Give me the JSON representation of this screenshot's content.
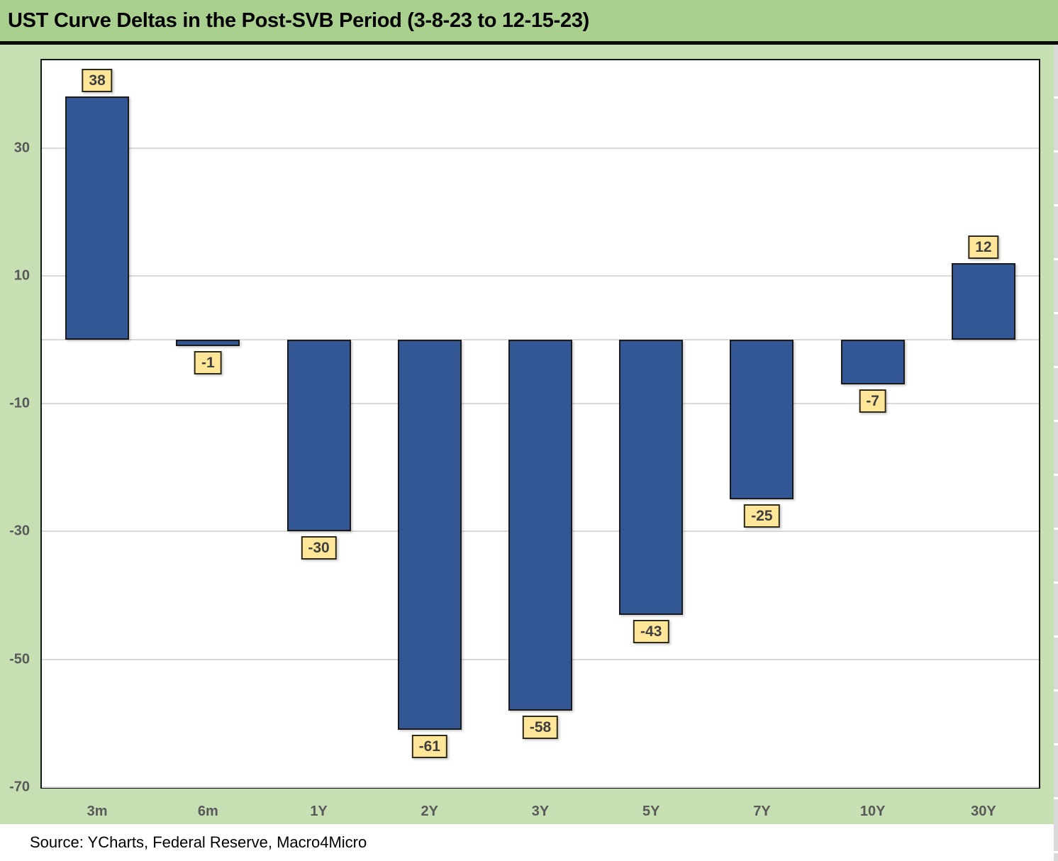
{
  "title": "UST Curve Deltas in the Post-SVB Period (3-8-23 to 12-15-23)",
  "source": "Source: YCharts, Federal Reserve, Macro4Micro",
  "colors": {
    "title_band_bg": "#A9D08E",
    "sheet_bg": "#C6E0B4",
    "bar_fill": "#335694",
    "bar_border": "#1A1A1A",
    "data_label_bg": "#FFE699",
    "data_label_border": "#2E2A1C",
    "data_label_text": "#3F3F3F",
    "axis_text": "#595959",
    "gridline": "#D9D9D9",
    "plot_border": "#161616",
    "plot_bg": "#FFFFFF"
  },
  "chart_data": {
    "type": "bar",
    "title": "UST Curve Deltas in the Post-SVB Period (3-8-23 to 12-15-23)",
    "categories": [
      "3m",
      "6m",
      "1Y",
      "2Y",
      "3Y",
      "5Y",
      "7Y",
      "10Y",
      "30Y"
    ],
    "values": [
      38,
      -1,
      -30,
      -61,
      -58,
      -43,
      -25,
      -7,
      12
    ],
    "data_labels": [
      "38",
      "-1",
      "-30",
      "-61",
      "-58",
      "-43",
      "-25",
      "-7",
      "12"
    ],
    "xlabel": "",
    "ylabel": "",
    "ylim": [
      -70,
      43.7
    ],
    "yticks": [
      30,
      10,
      -10,
      -30,
      -50,
      -70
    ],
    "zero_line": 0,
    "grid": true,
    "legend": "none",
    "bar_label_style": "boxed"
  }
}
